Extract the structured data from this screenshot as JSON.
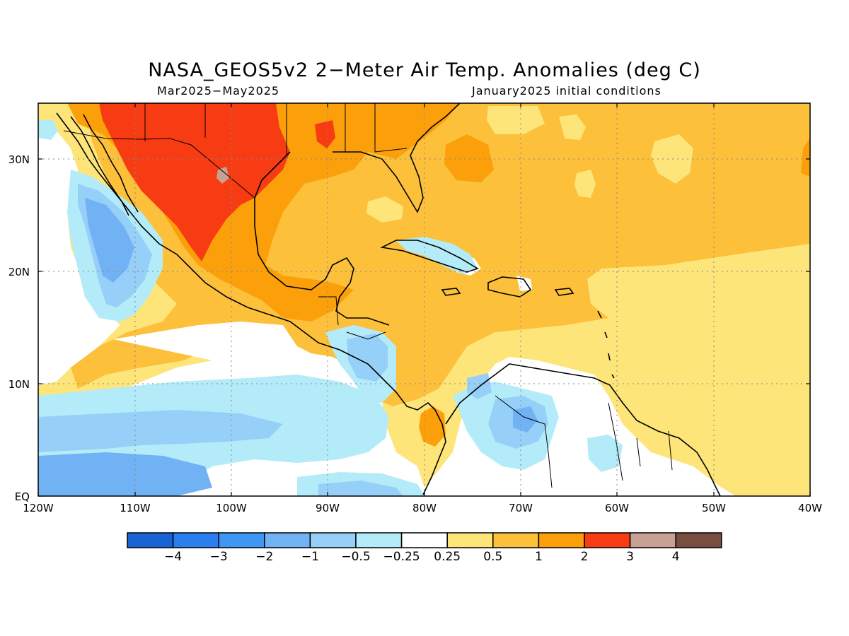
{
  "title": "NASA_GEOS5v2 2−Meter Air Temp. Anomalies (deg C)",
  "period": "Mar2025−May2025",
  "init": "January2025 initial conditions",
  "y_labels": [
    "30N",
    "20N",
    "10N",
    "EQ"
  ],
  "x_labels": [
    "120W",
    "110W",
    "100W",
    "90W",
    "80W",
    "70W",
    "60W",
    "50W",
    "40W"
  ],
  "colorbar": {
    "labels": [
      "−4",
      "−3",
      "−2",
      "−1",
      "−0.5",
      "−0.25",
      "0.25",
      "0.5",
      "1",
      "2",
      "3",
      "4"
    ],
    "colors": [
      "#1764d4",
      "#2a7ef0",
      "#3f96f5",
      "#71b2f5",
      "#96d0f8",
      "#b3ecf8",
      "#ffffff",
      "#fde57a",
      "#fcc03b",
      "#fba00a",
      "#f73b12",
      "#c9a094",
      "#7a4d41"
    ]
  },
  "map": {
    "lon_range": [
      -120,
      -40
    ],
    "lat_range": [
      0,
      35
    ],
    "gridlines": "dotted"
  }
}
